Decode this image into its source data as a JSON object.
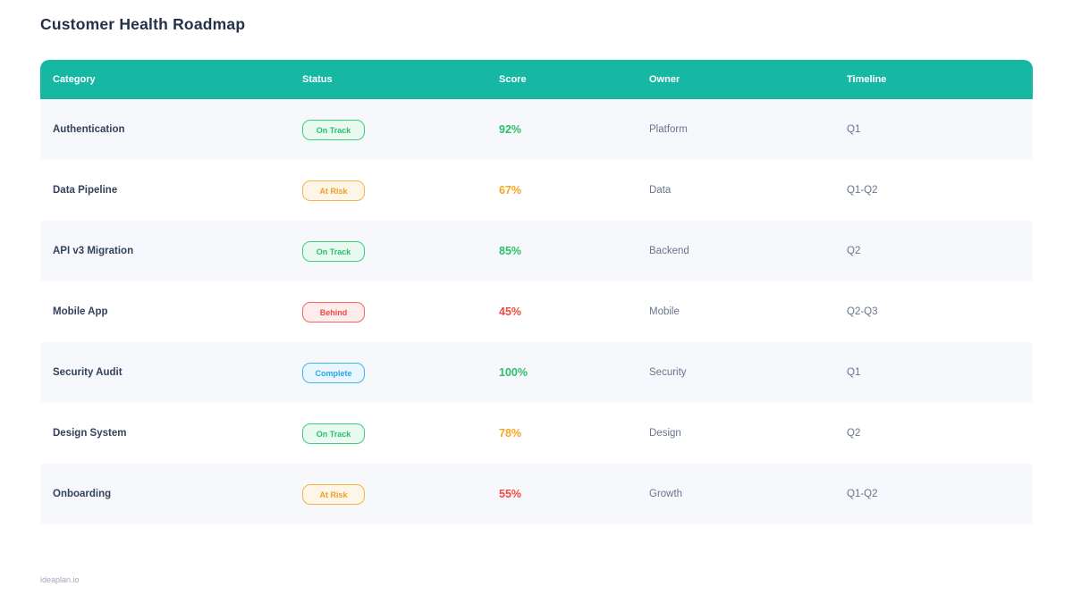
{
  "page": {
    "title": "Customer Health Roadmap",
    "footer": "ideaplan.io"
  },
  "table": {
    "headers": {
      "category": "Category",
      "status": "Status",
      "score": "Score",
      "owner": "Owner",
      "timeline": "Timeline"
    },
    "rows": [
      {
        "category": "Authentication",
        "status": "On Track",
        "status_variant": "on-track",
        "score": "92%",
        "score_color": "green",
        "owner": "Platform",
        "timeline": "Q1"
      },
      {
        "category": "Data Pipeline",
        "status": "At Risk",
        "status_variant": "at-risk",
        "score": "67%",
        "score_color": "orange",
        "owner": "Data",
        "timeline": "Q1-Q2"
      },
      {
        "category": "API v3 Migration",
        "status": "On Track",
        "status_variant": "on-track",
        "score": "85%",
        "score_color": "green",
        "owner": "Backend",
        "timeline": "Q2"
      },
      {
        "category": "Mobile App",
        "status": "Behind",
        "status_variant": "behind",
        "score": "45%",
        "score_color": "red",
        "owner": "Mobile",
        "timeline": "Q2-Q3"
      },
      {
        "category": "Security Audit",
        "status": "Complete",
        "status_variant": "complete",
        "score": "100%",
        "score_color": "green",
        "owner": "Security",
        "timeline": "Q1"
      },
      {
        "category": "Design System",
        "status": "On Track",
        "status_variant": "on-track",
        "score": "78%",
        "score_color": "orange",
        "owner": "Design",
        "timeline": "Q2"
      },
      {
        "category": "Onboarding",
        "status": "At Risk",
        "status_variant": "at-risk",
        "score": "55%",
        "score_color": "red",
        "owner": "Growth",
        "timeline": "Q1-Q2"
      }
    ]
  },
  "colors": {
    "header_bg": "#16b8a3",
    "title_text": "#243249",
    "row_stripe": "#f7f8fb",
    "score_green": "#2abf6c",
    "score_orange": "#f5a623",
    "score_red": "#ef4a41",
    "badge_on_track": "#27c06a",
    "badge_at_risk": "#ef9d28",
    "badge_behind": "#ee4b42",
    "badge_complete": "#2aa7e0"
  }
}
